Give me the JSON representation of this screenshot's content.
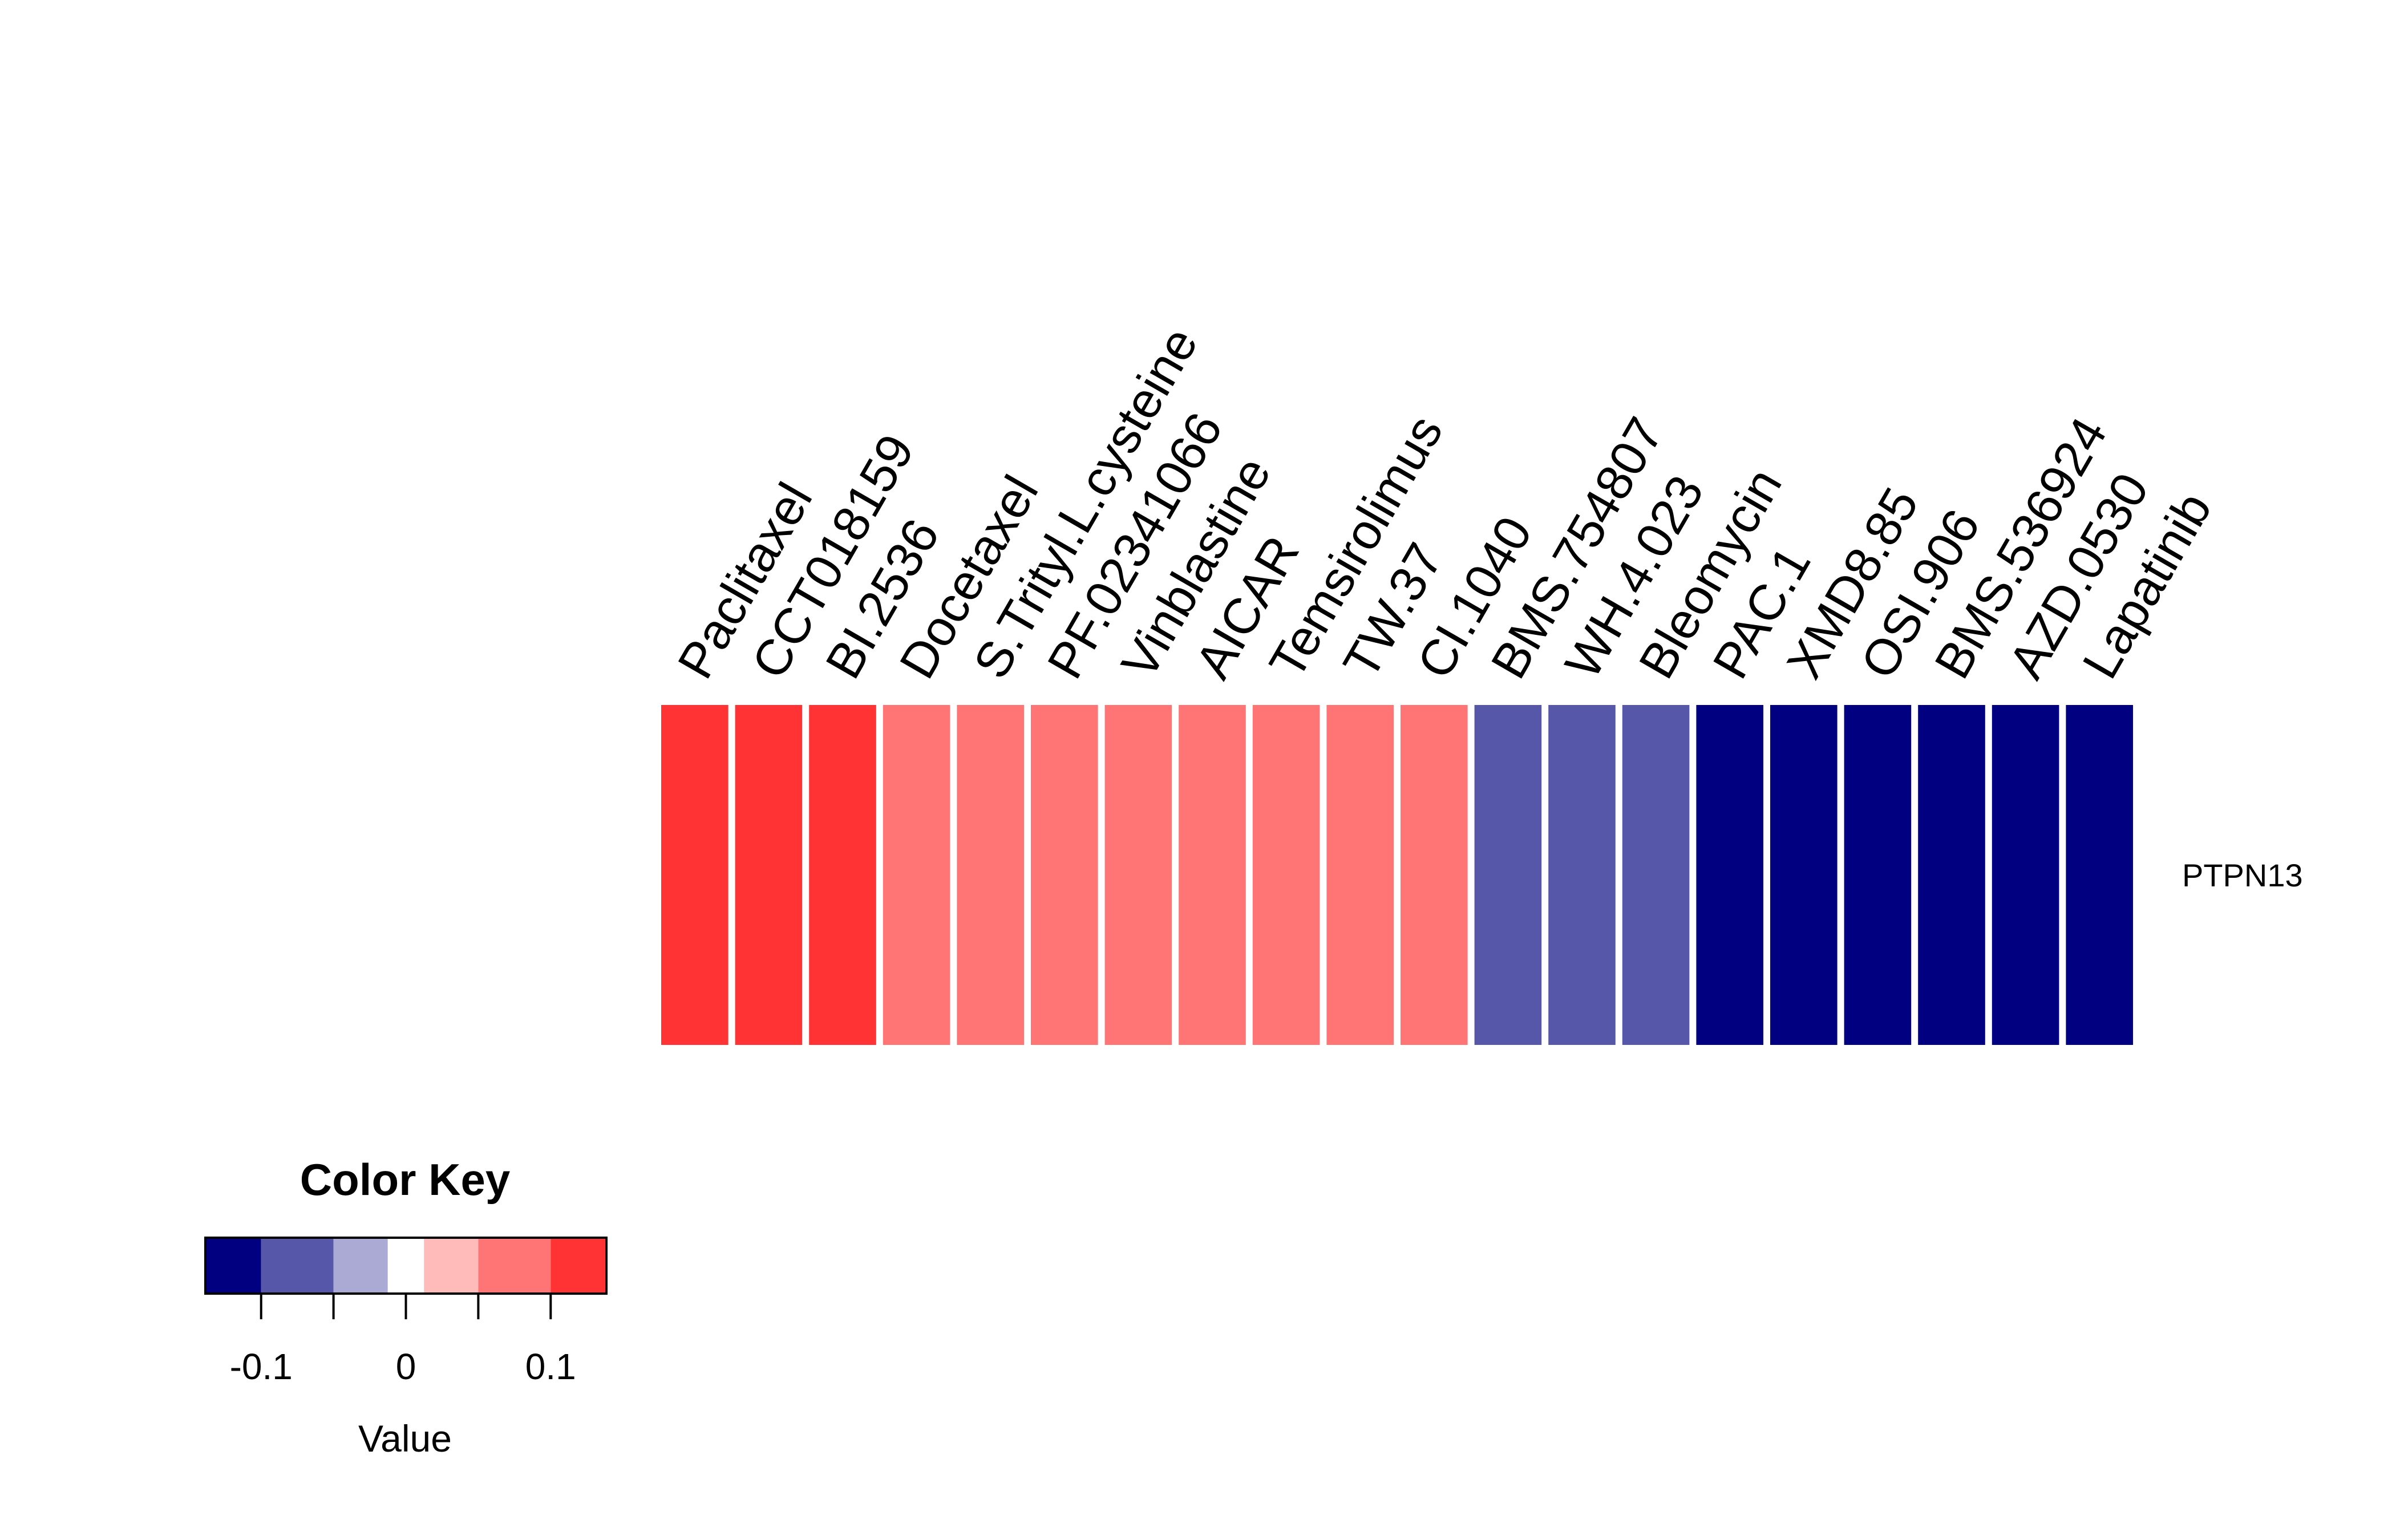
{
  "chart_data": {
    "type": "heatmap",
    "rows": [
      "PTPN13"
    ],
    "columns": [
      "Paclitaxel",
      "CCT018159",
      "BI.2536",
      "Docetaxel",
      "S.Trityl.L.cysteine",
      "PF.02341066",
      "Vinblastine",
      "AICAR",
      "Temsirolimus",
      "TW.37",
      "CI.1040",
      "BMS.754807",
      "WH.4.023",
      "Bleomycin",
      "PAC.1",
      "XMD8.85",
      "OSI.906",
      "BMS.536924",
      "AZD.0530",
      "Lapatinib"
    ],
    "values": [
      [
        0.13,
        0.13,
        0.13,
        0.09,
        0.09,
        0.09,
        0.09,
        0.09,
        0.09,
        0.09,
        0.09,
        -0.09,
        -0.09,
        -0.09,
        -0.13,
        -0.13,
        -0.13,
        -0.13,
        -0.13,
        -0.13
      ]
    ],
    "color_key": {
      "title": "Color Key",
      "xlabel": "Value",
      "breaks": [
        -0.1385,
        -0.1,
        -0.05,
        -0.0125,
        0.0125,
        0.05,
        0.1,
        0.1385
      ],
      "colors": [
        "#000080",
        "#5757AA",
        "#AAAAD4",
        "#FFFFFF",
        "#FFBABA",
        "#FF7575",
        "#FF3333"
      ],
      "ticks": [
        -0.1,
        -0.05,
        0,
        0.05,
        0.1
      ],
      "tick_labels": [
        "-0.1",
        "",
        "0",
        "",
        "0.1"
      ]
    }
  }
}
